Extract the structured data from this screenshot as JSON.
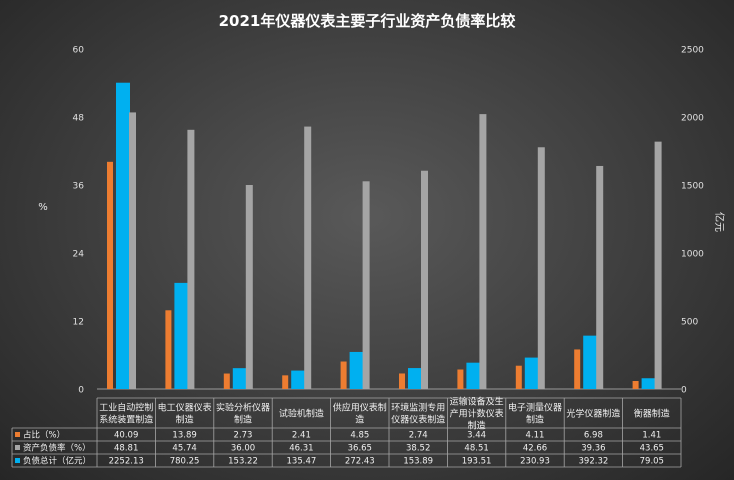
{
  "chart_data": {
    "type": "bar",
    "title": "2021年仪器仪表主要子行业资产负债率比较",
    "ylabel": "%",
    "y2label": "亿元",
    "ylim": [
      0,
      60
    ],
    "y2lim": [
      0,
      2500
    ],
    "yticks": [
      "0",
      "12",
      "24",
      "36",
      "48",
      "60"
    ],
    "y2ticks": [
      "0",
      "500",
      "1000",
      "1500",
      "2000",
      "2500"
    ],
    "grid": false,
    "categories": [
      [
        "工业自动控制",
        "系统装置制造"
      ],
      [
        "电工仪器仪表",
        "制造"
      ],
      [
        "实验分析仪器",
        "制造"
      ],
      [
        "试验机制造"
      ],
      [
        "供应用仪表制",
        "造"
      ],
      [
        "环境监测专用",
        "仪器仪表制造"
      ],
      [
        "运输设备及生",
        "产用计数仪表",
        "制造"
      ],
      [
        "电子测量仪器",
        "制造"
      ],
      [
        "光学仪器制造"
      ],
      [
        "衡器制造"
      ]
    ],
    "series": [
      {
        "name": "占比（%）",
        "axis": "left",
        "color": "#ed7d31",
        "values": [
          40.09,
          13.89,
          2.73,
          2.41,
          4.85,
          2.74,
          3.44,
          4.11,
          6.98,
          1.41
        ],
        "labels": [
          "40.09",
          "13.89",
          "2.73",
          "2.41",
          "4.85",
          "2.74",
          "3.44",
          "4.11",
          "6.98",
          "1.41"
        ]
      },
      {
        "name": "负债总计（亿元）",
        "axis": "right",
        "color": "#00b0f0",
        "values": [
          2252.13,
          780.25,
          153.22,
          135.47,
          272.43,
          153.89,
          193.51,
          230.93,
          392.32,
          79.05
        ],
        "labels": [
          "2252.13",
          "780.25",
          "153.22",
          "135.47",
          "272.43",
          "153.89",
          "193.51",
          "230.93",
          "392.32",
          "79.05"
        ]
      },
      {
        "name": "资产负债率（%）",
        "axis": "left",
        "color": "#a5a5a5",
        "values": [
          48.81,
          45.74,
          36.0,
          46.31,
          36.65,
          38.52,
          48.51,
          42.66,
          39.36,
          43.65
        ],
        "labels": [
          "48.81",
          "45.74",
          "36.00",
          "46.31",
          "36.65",
          "38.52",
          "48.51",
          "42.66",
          "39.36",
          "43.65"
        ]
      }
    ],
    "table_order": [
      0,
      2,
      1
    ],
    "legend": "data-table"
  }
}
